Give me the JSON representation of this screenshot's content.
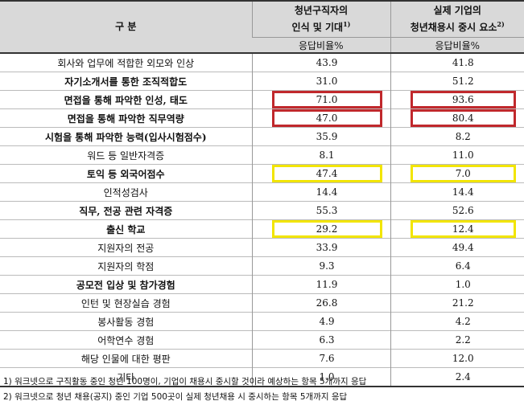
{
  "table": {
    "header": {
      "category": "구 분",
      "col1": {
        "title_line1": "청년구직자의",
        "title_line2": "인식 및 기대",
        "note": "1)",
        "unit": "응답비율%"
      },
      "col2": {
        "title_line1": "실제 기업의",
        "title_line2": "청년채용시 중시 요소",
        "note": "2)",
        "unit": "응답비율%"
      }
    },
    "rows": [
      [
        "회사와 업무에 적합한 외모와 인상",
        "43.9",
        "41.8"
      ],
      [
        "자기소개서를 통한 조직적합도",
        "31.0",
        "51.2"
      ],
      [
        "면접을 통해 파악한 인성, 태도",
        "71.0",
        "93.6"
      ],
      [
        "면접을 통해 파악한 직무역량",
        "47.0",
        "80.4"
      ],
      [
        "시험을 통해 파악한 능력(입사시험점수)",
        "35.9",
        "8.2"
      ],
      [
        "워드 등 일반자격증",
        "8.1",
        "11.0"
      ],
      [
        "토익 등 외국어점수",
        "47.4",
        "7.0"
      ],
      [
        "인적성검사",
        "14.4",
        "14.4"
      ],
      [
        "직무, 전공 관련 자격증",
        "55.3",
        "52.6"
      ],
      [
        "출신 학교",
        "29.2",
        "12.4"
      ],
      [
        "지원자의 전공",
        "33.9",
        "49.4"
      ],
      [
        "지원자의 학점",
        "9.3",
        "6.4"
      ],
      [
        "공모전 입상 및 참가경험",
        "11.9",
        "1.0"
      ],
      [
        "인턴 및 현장실습 경험",
        "26.8",
        "21.2"
      ],
      [
        "봉사활동 경험",
        "4.9",
        "4.2"
      ],
      [
        "어학연수 경험",
        "6.3",
        "2.2"
      ],
      [
        "해당 인물에 대한 평판",
        "7.6",
        "12.0"
      ],
      [
        "기타",
        "1.0",
        "2.4"
      ]
    ],
    "footnotes": [
      "1) 워크넷으로 구직활동 중인 청년 100명이, 기업이 채용시 중시할 것이라 예상하는 항목 5개까지 응답",
      "2) 워크넷으로 청년 채용(공지) 중인 기업 500곳이 실제 청년채용 시 중시하는 항목 5개까지 응답"
    ]
  }
}
